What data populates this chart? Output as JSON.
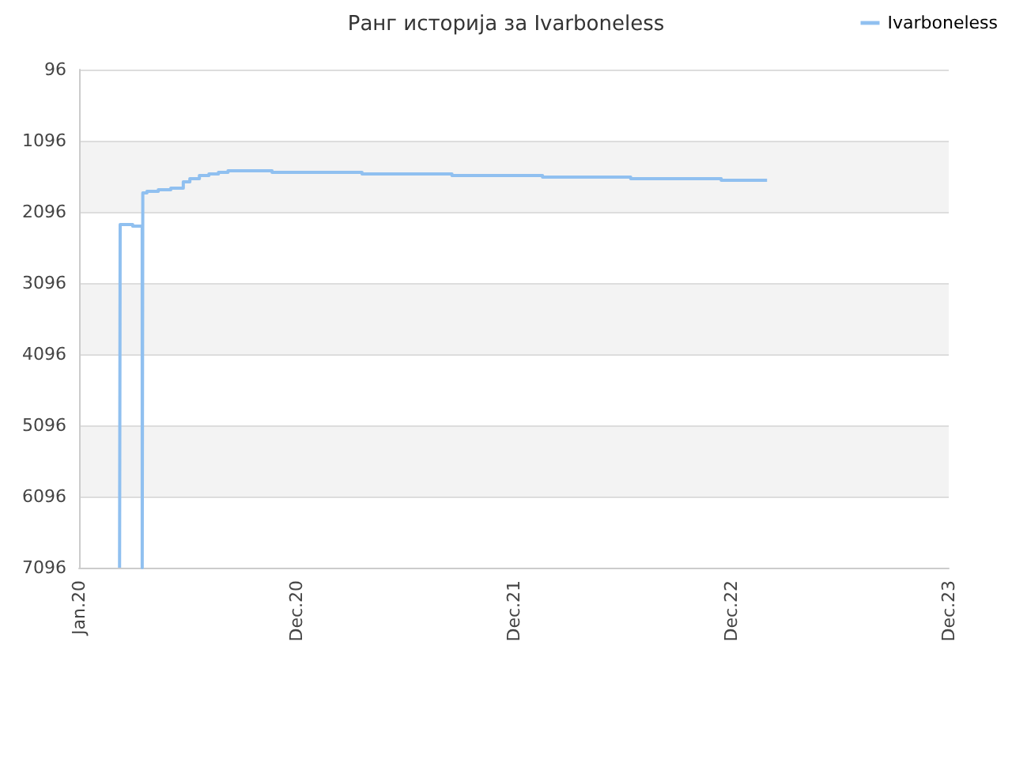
{
  "chart_data": {
    "type": "step",
    "title": "Ранг историја за Ivarboneless",
    "x": [
      "2020-03-09",
      "2020-03-10",
      "2020-03-31",
      "2020-04-16",
      "2020-04-17",
      "2020-04-24",
      "2020-05-13",
      "2020-06-03",
      "2020-06-24",
      "2020-07-05",
      "2020-07-21",
      "2020-08-06",
      "2020-08-22",
      "2020-09-07",
      "2020-11-20",
      "2021-04-20",
      "2021-09-18",
      "2022-02-17",
      "2022-07-15",
      "2022-12-14",
      "2023-03-01"
    ],
    "series": [
      {
        "name": "Ivarboneless",
        "color": "#90c0f0",
        "values": [
          7096,
          2274,
          2296,
          7096,
          1829,
          1807,
          1785,
          1763,
          1674,
          1630,
          1585,
          1563,
          1540,
          1518,
          1540,
          1563,
          1585,
          1607,
          1629,
          1651,
          1651
        ]
      }
    ],
    "xlim": [
      "2020-01-01",
      "2023-12-31"
    ],
    "xticks": [
      {
        "value": "2020-01-01",
        "label": "Jan.20"
      },
      {
        "value": "2020-12-31",
        "label": "Dec.20"
      },
      {
        "value": "2021-12-31",
        "label": "Dec.21"
      },
      {
        "value": "2022-12-31",
        "label": "Dec.22"
      },
      {
        "value": "2023-12-31",
        "label": "Dec.23"
      }
    ],
    "ylim": [
      7096,
      96
    ],
    "yticks": [
      96,
      1096,
      2096,
      3096,
      4096,
      5096,
      6096,
      7096
    ],
    "grid": "y",
    "legend": "top right",
    "marker": "none"
  }
}
